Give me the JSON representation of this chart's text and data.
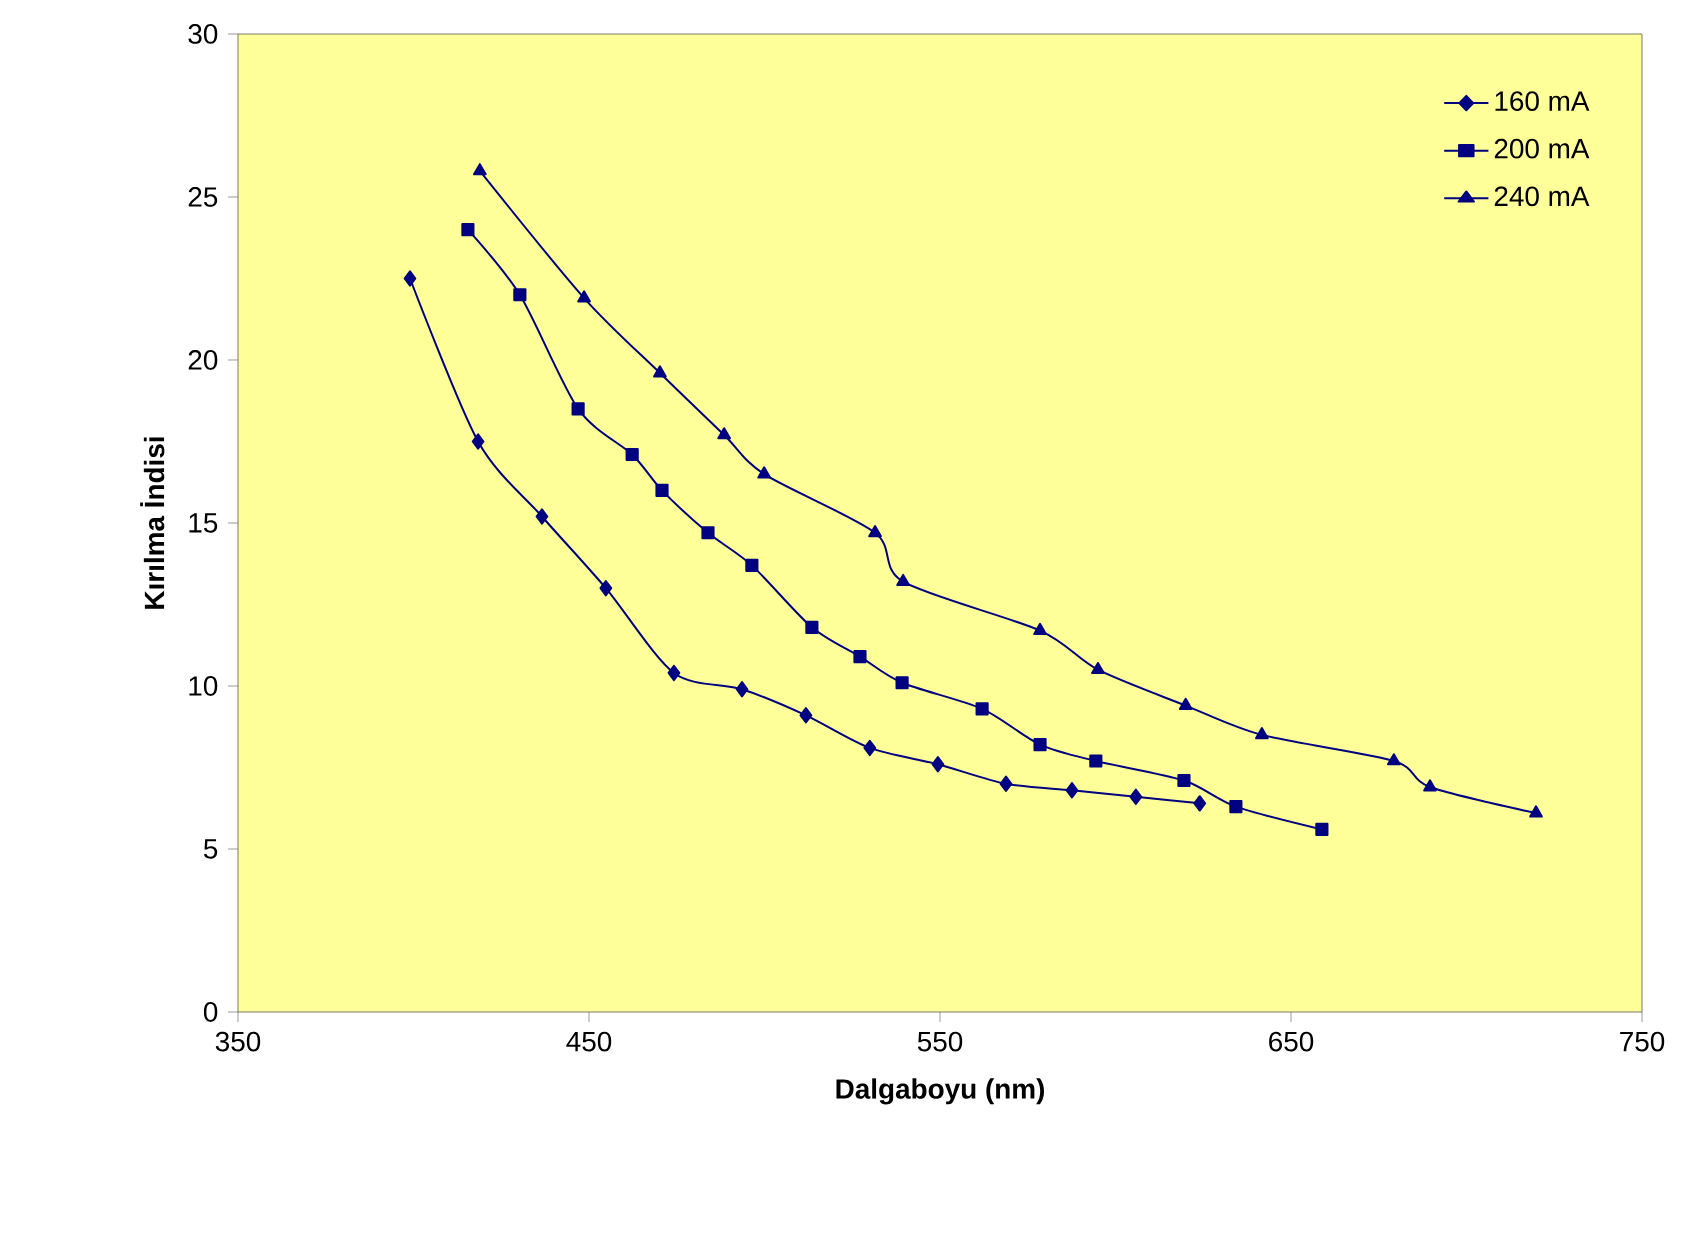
{
  "chart_data": {
    "type": "line",
    "xlabel": "Dalgaboyu (nm)",
    "ylabel": "Kırılma İndisi",
    "xlim": [
      350,
      750
    ],
    "ylim": [
      0,
      30
    ],
    "xticks": [
      350,
      450,
      550,
      650,
      750
    ],
    "yticks": [
      0,
      5,
      10,
      15,
      20,
      25,
      30
    ],
    "grid": false,
    "legend": "top right",
    "line_style": "solid",
    "series": [
      {
        "name": "160 mA",
        "color": "#000080",
        "marker": "diamond",
        "x": [
          399,
          418.4,
          436.6,
          454.8,
          474.2,
          493.6,
          511.8,
          530,
          549.4,
          568.8,
          587.6,
          605.8,
          624
        ],
        "values": [
          22.5,
          17.5,
          15.2,
          13.0,
          10.4,
          9.9,
          9.1,
          8.1,
          7.6,
          7.0,
          6.8,
          6.6,
          6.4
        ]
      },
      {
        "name": "200 mA",
        "color": "#000080",
        "marker": "square",
        "x": [
          415.5,
          430.3,
          446.9,
          462.3,
          470.8,
          483.9,
          496.4,
          513.5,
          527.2,
          539.2,
          562,
          578.5,
          594.4,
          619.5,
          634.3,
          658.8
        ],
        "values": [
          24.0,
          22.0,
          18.5,
          17.1,
          16.0,
          14.7,
          13.7,
          11.8,
          10.9,
          10.1,
          9.3,
          8.2,
          7.7,
          7.1,
          6.3,
          5.6
        ]
      },
      {
        "name": "240 mA",
        "color": "#000080",
        "marker": "triangle",
        "x": [
          418.9,
          448.6,
          470.2,
          488.5,
          499.9,
          531.5,
          539.5,
          578.5,
          595,
          620,
          641.7,
          679.3,
          689.6,
          719.8
        ],
        "values": [
          25.8,
          21.9,
          19.6,
          17.7,
          16.5,
          14.7,
          13.2,
          11.7,
          10.5,
          9.4,
          8.5,
          7.7,
          6.9,
          6.1
        ]
      }
    ]
  }
}
